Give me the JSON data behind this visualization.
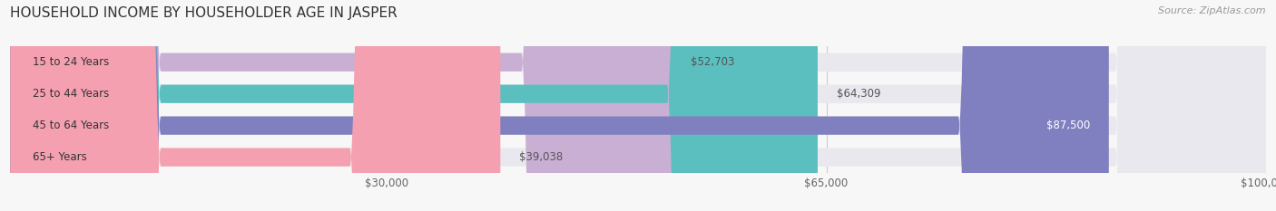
{
  "title": "HOUSEHOLD INCOME BY HOUSEHOLDER AGE IN JASPER",
  "source": "Source: ZipAtlas.com",
  "categories": [
    "15 to 24 Years",
    "25 to 44 Years",
    "45 to 64 Years",
    "65+ Years"
  ],
  "values": [
    52703,
    64309,
    87500,
    39038
  ],
  "bar_colors": [
    "#c9afd4",
    "#5bbfbf",
    "#8080c0",
    "#f4a0b0"
  ],
  "value_labels": [
    "$52,703",
    "$64,309",
    "$87,500",
    "$39,038"
  ],
  "xticks": [
    30000,
    65000,
    100000
  ],
  "xtick_labels": [
    "$30,000",
    "$65,000",
    "$100,000"
  ],
  "xmax": 100000,
  "xmin": 0,
  "title_fontsize": 11,
  "label_fontsize": 8.5,
  "source_fontsize": 8,
  "background_color": "#f7f7f7",
  "bar_bg_color": "#e8e8ee",
  "grid_color": "#cccccc",
  "cat_label_color": "#333333",
  "val_label_color_dark": "#555555",
  "val_label_color_light": "#ffffff"
}
